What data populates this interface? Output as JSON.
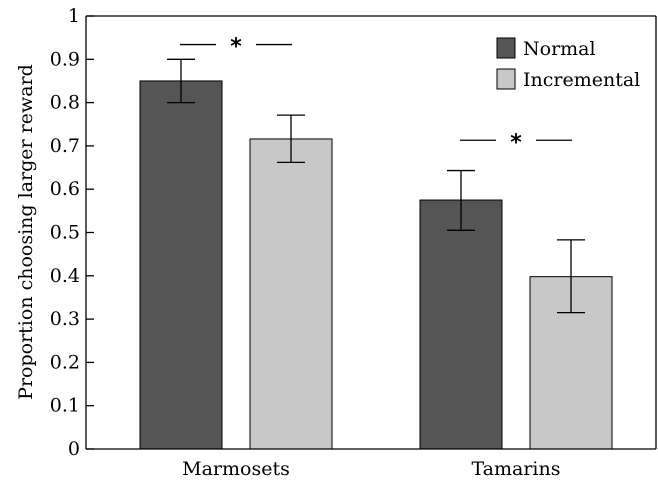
{
  "chart_data": {
    "type": "bar",
    "title": "",
    "xlabel": "",
    "ylabel": "Proportion choosing larger reward",
    "ylim": [
      0,
      1
    ],
    "yticks": [
      "0",
      "0.1",
      "0.2",
      "0.3",
      "0.4",
      "0.5",
      "0.6",
      "0.7",
      "0.8",
      "0.9",
      "1"
    ],
    "categories": [
      "Marmosets",
      "Tamarins"
    ],
    "series": [
      {
        "name": "Normal",
        "color": "#555555",
        "values": [
          0.85,
          0.575
        ],
        "error": [
          [
            0.8,
            0.9
          ],
          [
            0.505,
            0.643
          ]
        ]
      },
      {
        "name": "Incremental",
        "color": "#c8c8c8",
        "values": [
          0.716,
          0.398
        ],
        "error": [
          [
            0.662,
            0.771
          ],
          [
            0.315,
            0.483
          ]
        ]
      }
    ],
    "annotations": [
      "*",
      "*"
    ],
    "grid": false,
    "legend_position": "top-right"
  }
}
